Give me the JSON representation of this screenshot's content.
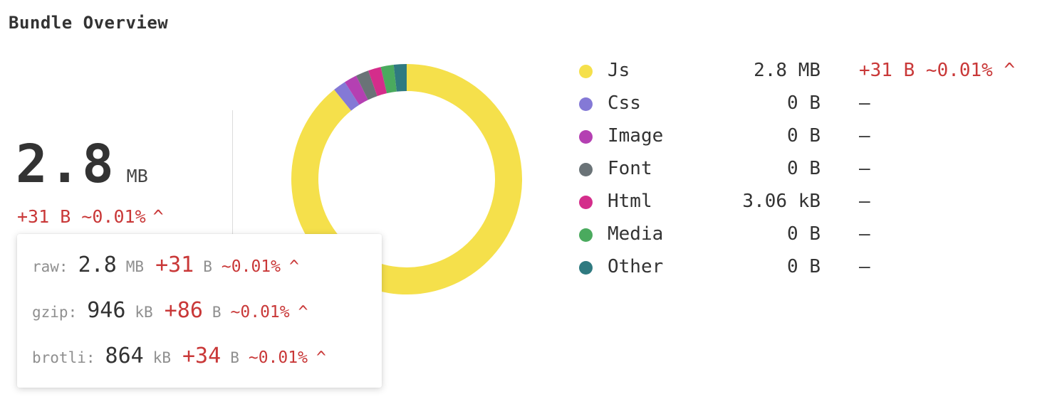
{
  "title": "Bundle Overview",
  "summary": {
    "total_value": "2.8",
    "total_unit": "MB",
    "delta": "+31 B ~0.01%",
    "delta_caret": "^"
  },
  "tooltip": {
    "rows": [
      {
        "label": "raw:",
        "value": "2.8",
        "unit": "MB",
        "delta": "+31",
        "delta_unit": "B",
        "pct": "~0.01%",
        "caret": "^"
      },
      {
        "label": "gzip:",
        "value": "946",
        "unit": "kB",
        "delta": "+86",
        "delta_unit": "B",
        "pct": "~0.01%",
        "caret": "^"
      },
      {
        "label": "brotli:",
        "value": "864",
        "unit": "kB",
        "delta": "+34",
        "delta_unit": "B",
        "pct": "~0.01%",
        "caret": "^"
      }
    ]
  },
  "colors": {
    "js": "#f5e04b",
    "css": "#8479d6",
    "image": "#b440b2",
    "font": "#6a7377",
    "html": "#d42d8b",
    "media": "#4aaa5e",
    "other": "#2f7a80",
    "increase": "#c93838"
  },
  "chart_data": {
    "type": "pie",
    "style": "donut",
    "categories": [
      "Js",
      "Css",
      "Image",
      "Font",
      "Html",
      "Media",
      "Other"
    ],
    "values": [
      89,
      1.8,
      1.8,
      1.8,
      1.8,
      1.8,
      1.8
    ],
    "colors": [
      "#f5e04b",
      "#8479d6",
      "#b440b2",
      "#6a7377",
      "#d42d8b",
      "#4aaa5e",
      "#2f7a80"
    ]
  },
  "legend": [
    {
      "name": "Js",
      "size": "2.8 MB",
      "delta": "+31 B ~0.01% ^",
      "changed": true,
      "color": "#f5e04b"
    },
    {
      "name": "Css",
      "size": "0 B",
      "delta": "–",
      "changed": false,
      "color": "#8479d6"
    },
    {
      "name": "Image",
      "size": "0 B",
      "delta": "–",
      "changed": false,
      "color": "#b440b2"
    },
    {
      "name": "Font",
      "size": "0 B",
      "delta": "–",
      "changed": false,
      "color": "#6a7377"
    },
    {
      "name": "Html",
      "size": "3.06 kB",
      "delta": "–",
      "changed": false,
      "color": "#d42d8b"
    },
    {
      "name": "Media",
      "size": "0 B",
      "delta": "–",
      "changed": false,
      "color": "#4aaa5e"
    },
    {
      "name": "Other",
      "size": "0 B",
      "delta": "–",
      "changed": false,
      "color": "#2f7a80"
    }
  ]
}
